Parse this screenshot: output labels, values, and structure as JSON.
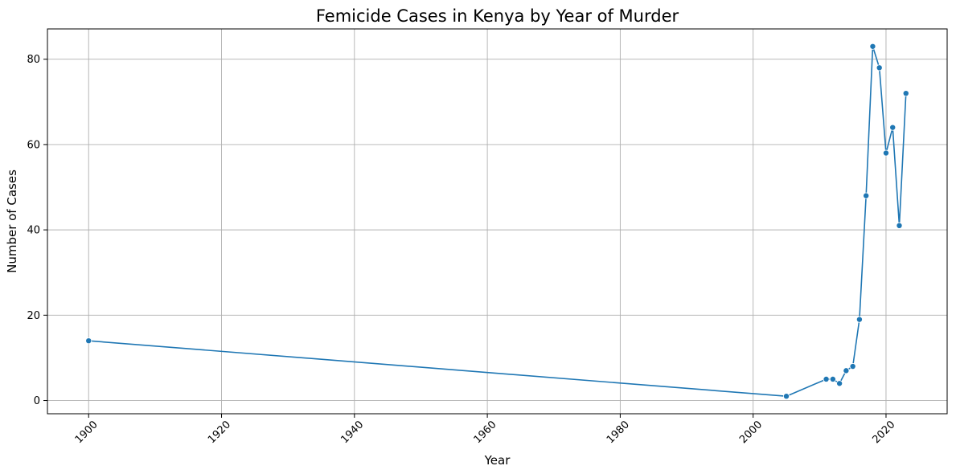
{
  "chart_data": {
    "type": "line",
    "title": "Femicide Cases in Kenya by Year of Murder",
    "xlabel": "Year",
    "ylabel": "Number of Cases",
    "xlim": [
      1893.8,
      2029.2
    ],
    "ylim": [
      -3.1,
      87.1
    ],
    "xticks": [
      1900,
      1920,
      1940,
      1960,
      1980,
      2000,
      2020
    ],
    "yticks": [
      0,
      20,
      40,
      60,
      80
    ],
    "grid": true,
    "marker": "circle",
    "series": [
      {
        "color": "#1f77b4",
        "points": [
          {
            "x": 1900,
            "y": 14
          },
          {
            "x": 2005,
            "y": 1
          },
          {
            "x": 2011,
            "y": 5
          },
          {
            "x": 2012,
            "y": 5
          },
          {
            "x": 2013,
            "y": 4
          },
          {
            "x": 2014,
            "y": 7
          },
          {
            "x": 2015,
            "y": 8
          },
          {
            "x": 2016,
            "y": 19
          },
          {
            "x": 2017,
            "y": 48
          },
          {
            "x": 2018,
            "y": 83
          },
          {
            "x": 2019,
            "y": 78
          },
          {
            "x": 2020,
            "y": 58
          },
          {
            "x": 2021,
            "y": 64
          },
          {
            "x": 2022,
            "y": 41
          },
          {
            "x": 2023,
            "y": 72
          }
        ]
      }
    ]
  }
}
